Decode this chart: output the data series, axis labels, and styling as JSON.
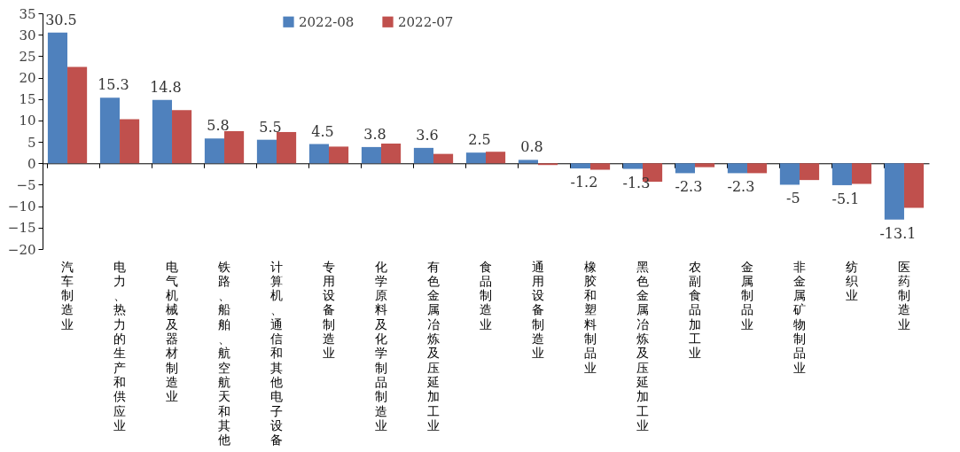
{
  "chart_data": {
    "type": "bar",
    "categories": [
      "汽车制造业",
      "电力、热力的生产和供应业",
      "电气机械及器材制造业",
      "铁路、船舶、航空航天和其他",
      "计算机、通信和其他电子设备",
      "专用设备制造业",
      "化学原料及化学制品制造业",
      "有色金属冶炼及压延加工业",
      "食品制造业",
      "通用设备制造业",
      "橡胶和塑料制品业",
      "黑色金属冶炼及压延加工业",
      "农副食品加工业",
      "金属制品业",
      "非金属矿物制品业",
      "纺织业",
      "医药制造业"
    ],
    "series": [
      {
        "name": "2022-08",
        "color": "#4f81bd",
        "values": [
          30.5,
          15.3,
          14.8,
          5.8,
          5.5,
          4.5,
          3.8,
          3.6,
          2.5,
          0.8,
          -1.2,
          -1.3,
          -2.3,
          -2.3,
          -5,
          -5.1,
          -13.1
        ],
        "value_labels": [
          "30.5",
          "15.3",
          "14.8",
          "5.8",
          "5.5",
          "4.5",
          "3.8",
          "3.6",
          "2.5",
          "0.8",
          "-1.2",
          "-1.3",
          "-2.3",
          "-2.3",
          "-5",
          "-5.1",
          "-13.1"
        ]
      },
      {
        "name": "2022-07",
        "color": "#c0504d",
        "values": [
          22.5,
          10.3,
          12.4,
          7.5,
          7.3,
          3.9,
          4.6,
          2.2,
          2.7,
          -0.4,
          -1.5,
          -4.3,
          -0.9,
          -2.3,
          -3.9,
          -4.8,
          -10.4
        ]
      }
    ],
    "ylim": [
      -20,
      35
    ],
    "yticks": [
      -20,
      -15,
      -10,
      -5,
      0,
      5,
      10,
      15,
      20,
      25,
      30,
      35
    ],
    "legend": "top"
  }
}
